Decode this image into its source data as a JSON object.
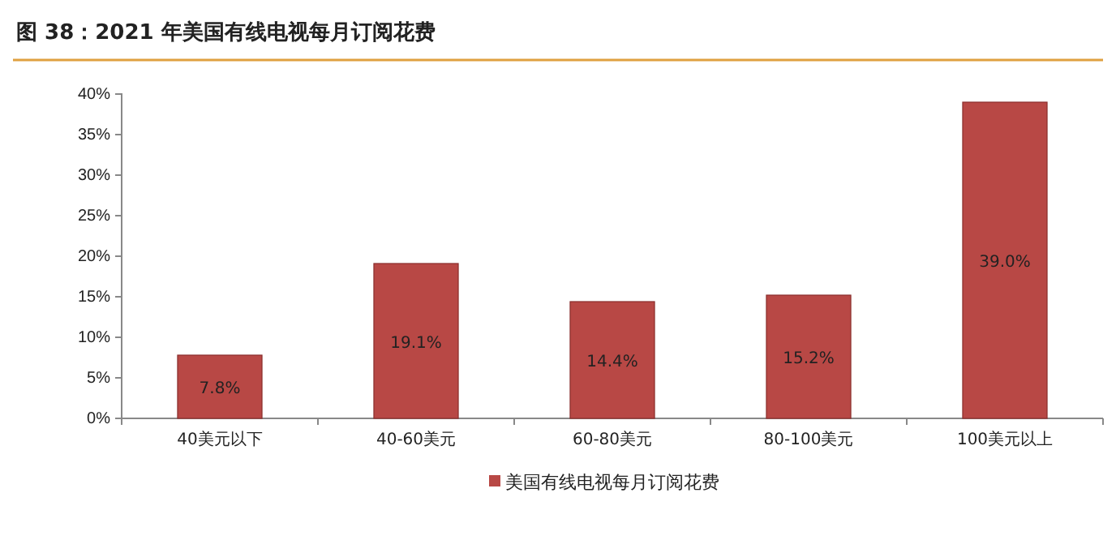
{
  "chart_data": {
    "type": "bar",
    "title": "图 38：2021 年美国有线电视每月订阅花费",
    "categories": [
      "40美元以下",
      "40-60美元",
      "60-80美元",
      "80-100美元",
      "100美元以上"
    ],
    "series": [
      {
        "name": "美国有线电视每月订阅花费",
        "color": "#b84845",
        "values": [
          7.8,
          19.1,
          14.4,
          15.2,
          39.0
        ],
        "value_labels": [
          "7.8%",
          "19.1%",
          "14.4%",
          "15.2%",
          "39.0%"
        ]
      }
    ],
    "ylim": [
      0,
      40
    ],
    "yticks": [
      {
        "value": 0,
        "label": "0%"
      },
      {
        "value": 5,
        "label": "5%"
      },
      {
        "value": 10,
        "label": "10%"
      },
      {
        "value": 15,
        "label": "15%"
      },
      {
        "value": 20,
        "label": "20%"
      },
      {
        "value": 25,
        "label": "25%"
      },
      {
        "value": 30,
        "label": "30%"
      },
      {
        "value": 35,
        "label": "35%"
      },
      {
        "value": 40,
        "label": "40%"
      }
    ],
    "grid": false,
    "legend": "bottom"
  }
}
